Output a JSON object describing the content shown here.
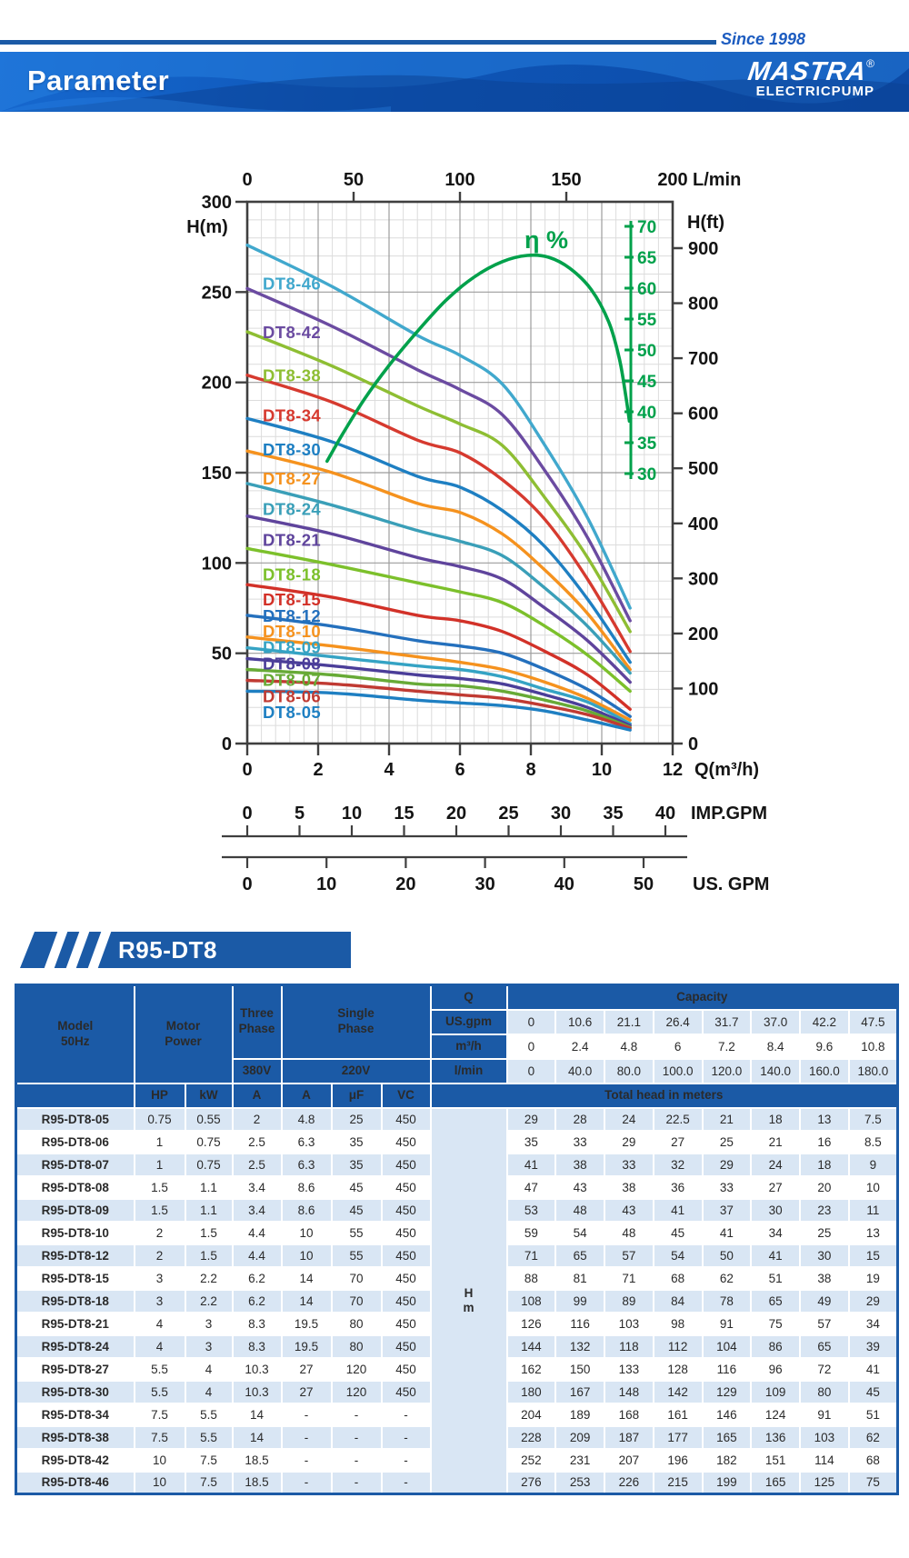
{
  "header": {
    "since": "Since 1998",
    "title": "Parameter",
    "brand": "MASTRA",
    "brand_mark": "®",
    "brand_sub": "ELECTRICPUMP"
  },
  "banner": {
    "label": "R95-DT8"
  },
  "chart_data": {
    "type": "line",
    "eff_label": "η %",
    "axes": {
      "top": {
        "label": "L/min",
        "ticks": [
          0,
          50,
          100,
          150,
          200
        ],
        "range": [
          0,
          200
        ]
      },
      "left": {
        "label": "H(m)",
        "ticks": [
          300,
          250,
          200,
          150,
          100,
          50,
          0
        ],
        "range": [
          0,
          300
        ]
      },
      "bottom": {
        "label": "Q(m³/h)",
        "ticks": [
          0,
          2,
          4,
          6,
          8,
          10,
          12
        ],
        "range": [
          0,
          12
        ]
      },
      "right": {
        "label": "H(ft)",
        "ticks": [
          900,
          800,
          700,
          600,
          500,
          400,
          300,
          200,
          100,
          0
        ]
      },
      "eff": {
        "ticks": [
          70,
          65,
          60,
          55,
          50,
          45,
          40,
          35,
          30
        ],
        "range": [
          30,
          70
        ]
      },
      "imp": {
        "label": "IMP.GPM",
        "ticks": [
          0,
          5,
          10,
          15,
          20,
          25,
          30,
          35,
          40
        ]
      },
      "us": {
        "label": "US. GPM",
        "ticks": [
          0,
          10,
          20,
          30,
          40,
          50
        ]
      }
    },
    "grid": {
      "minor_q_step": 0.4,
      "minor_h_step": 10,
      "major_q_step": 2,
      "major_h_step": 50
    },
    "q_points": [
      0,
      2.4,
      4.8,
      6,
      7.2,
      8.4,
      9.6,
      10.8
    ],
    "series": [
      {
        "name": "DT8-46",
        "color": "#41a8cd",
        "label_h": 255,
        "values": [
          276,
          253,
          226,
          215,
          199,
          165,
          125,
          75
        ]
      },
      {
        "name": "DT8-42",
        "color": "#6b4ba1",
        "label_h": 228,
        "values": [
          252,
          231,
          207,
          196,
          182,
          151,
          114,
          68
        ]
      },
      {
        "name": "DT8-38",
        "color": "#8ebe33",
        "label_h": 204,
        "values": [
          228,
          209,
          187,
          177,
          165,
          136,
          103,
          62
        ]
      },
      {
        "name": "DT8-34",
        "color": "#d63a2f",
        "label_h": 182,
        "values": [
          204,
          189,
          168,
          161,
          146,
          124,
          91,
          51
        ]
      },
      {
        "name": "DT8-30",
        "color": "#1e7fc2",
        "label_h": 163,
        "values": [
          180,
          167,
          148,
          142,
          129,
          109,
          80,
          45
        ]
      },
      {
        "name": "DT8-27",
        "color": "#f5921e",
        "label_h": 147,
        "values": [
          162,
          150,
          133,
          128,
          116,
          96,
          72,
          41
        ]
      },
      {
        "name": "DT8-24",
        "color": "#3a9fb8",
        "label_h": 130,
        "values": [
          144,
          132,
          118,
          112,
          104,
          86,
          65,
          39
        ]
      },
      {
        "name": "DT8-21",
        "color": "#5f449c",
        "label_h": 113,
        "values": [
          126,
          116,
          103,
          98,
          91,
          75,
          57,
          34
        ]
      },
      {
        "name": "DT8-18",
        "color": "#7cc02b",
        "label_h": 94,
        "values": [
          108,
          99,
          89,
          84,
          78,
          65,
          49,
          29
        ]
      },
      {
        "name": "DT8-15",
        "color": "#d23128",
        "label_h": 80,
        "values": [
          88,
          81,
          71,
          68,
          62,
          51,
          38,
          19
        ]
      },
      {
        "name": "DT8-12",
        "color": "#2470bd",
        "label_h": 71,
        "values": [
          71,
          65,
          57,
          54,
          50,
          41,
          30,
          15
        ]
      },
      {
        "name": "DT8-10",
        "color": "#f5921e",
        "label_h": 62.5,
        "values": [
          59,
          54,
          48,
          45,
          41,
          34,
          25,
          13
        ]
      },
      {
        "name": "DT8-09",
        "color": "#35a3c4",
        "label_h": 53.5,
        "values": [
          53,
          48,
          43,
          41,
          37,
          30,
          23,
          11
        ]
      },
      {
        "name": "DT8-08",
        "color": "#4b3e99",
        "label_h": 44.5,
        "values": [
          47,
          43,
          38,
          36,
          33,
          27,
          20,
          10
        ]
      },
      {
        "name": "DT8-07",
        "color": "#67aa36",
        "label_h": 35.5,
        "values": [
          41,
          38,
          33,
          32,
          29,
          24,
          18,
          9
        ]
      },
      {
        "name": "DT8-06",
        "color": "#c03a32",
        "label_h": 26.5,
        "values": [
          35,
          33,
          29,
          27,
          25,
          21,
          16,
          8.5
        ]
      },
      {
        "name": "DT8-05",
        "color": "#1e7fc2",
        "label_h": 17.5,
        "values": [
          29,
          28,
          24,
          22.5,
          21,
          18,
          13,
          7.5
        ]
      }
    ],
    "efficiency": {
      "color": "#00a14b",
      "points": [
        [
          2.25,
          32
        ],
        [
          2.7,
          36.5
        ],
        [
          3.3,
          42
        ],
        [
          4.0,
          47.5
        ],
        [
          4.8,
          53
        ],
        [
          5.6,
          58
        ],
        [
          6.4,
          61.8
        ],
        [
          7.2,
          64.3
        ],
        [
          7.9,
          65.3
        ],
        [
          8.5,
          65.0
        ],
        [
          9.1,
          63.2
        ],
        [
          9.7,
          59.8
        ],
        [
          10.2,
          54.5
        ],
        [
          10.5,
          48.5
        ],
        [
          10.68,
          42.5
        ],
        [
          10.78,
          38.5
        ]
      ]
    }
  },
  "table": {
    "header": {
      "model": [
        "Model",
        "50Hz"
      ],
      "motor": [
        "Motor",
        "Power"
      ],
      "three": [
        "Three",
        "Phase"
      ],
      "single": [
        "Single",
        "Phase"
      ],
      "v380": "380V",
      "v220": "220V",
      "q": "Q",
      "capacity": "Capacity",
      "cap_rows": [
        {
          "unit": "US.gpm",
          "values": [
            "0",
            "10.6",
            "21.1",
            "26.4",
            "31.7",
            "37.0",
            "42.2",
            "47.5"
          ]
        },
        {
          "unit": "m³/h",
          "values": [
            "0",
            "2.4",
            "4.8",
            "6",
            "7.2",
            "8.4",
            "9.6",
            "10.8"
          ]
        },
        {
          "unit": "l/min",
          "values": [
            "0",
            "40.0",
            "80.0",
            "100.0",
            "120.0",
            "140.0",
            "160.0",
            "180.0"
          ]
        }
      ],
      "sub": [
        "HP",
        "kW",
        "A",
        "A",
        "μF",
        "VC"
      ],
      "total_head": "Total head in meters",
      "hm": [
        "H",
        "m"
      ]
    },
    "rows": [
      {
        "model": "R95-DT8-05",
        "motor": [
          "0.75",
          "0.55"
        ],
        "a3": "2",
        "single": [
          "4.8",
          "25",
          "450"
        ],
        "heads": [
          "29",
          "28",
          "24",
          "22.5",
          "21",
          "18",
          "13",
          "7.5"
        ]
      },
      {
        "model": "R95-DT8-06",
        "motor": [
          "1",
          "0.75"
        ],
        "a3": "2.5",
        "single": [
          "6.3",
          "35",
          "450"
        ],
        "heads": [
          "35",
          "33",
          "29",
          "27",
          "25",
          "21",
          "16",
          "8.5"
        ]
      },
      {
        "model": "R95-DT8-07",
        "motor": [
          "1",
          "0.75"
        ],
        "a3": "2.5",
        "single": [
          "6.3",
          "35",
          "450"
        ],
        "heads": [
          "41",
          "38",
          "33",
          "32",
          "29",
          "24",
          "18",
          "9"
        ]
      },
      {
        "model": "R95-DT8-08",
        "motor": [
          "1.5",
          "1.1"
        ],
        "a3": "3.4",
        "single": [
          "8.6",
          "45",
          "450"
        ],
        "heads": [
          "47",
          "43",
          "38",
          "36",
          "33",
          "27",
          "20",
          "10"
        ]
      },
      {
        "model": "R95-DT8-09",
        "motor": [
          "1.5",
          "1.1"
        ],
        "a3": "3.4",
        "single": [
          "8.6",
          "45",
          "450"
        ],
        "heads": [
          "53",
          "48",
          "43",
          "41",
          "37",
          "30",
          "23",
          "11"
        ]
      },
      {
        "model": "R95-DT8-10",
        "motor": [
          "2",
          "1.5"
        ],
        "a3": "4.4",
        "single": [
          "10",
          "55",
          "450"
        ],
        "heads": [
          "59",
          "54",
          "48",
          "45",
          "41",
          "34",
          "25",
          "13"
        ]
      },
      {
        "model": "R95-DT8-12",
        "motor": [
          "2",
          "1.5"
        ],
        "a3": "4.4",
        "single": [
          "10",
          "55",
          "450"
        ],
        "heads": [
          "71",
          "65",
          "57",
          "54",
          "50",
          "41",
          "30",
          "15"
        ]
      },
      {
        "model": "R95-DT8-15",
        "motor": [
          "3",
          "2.2"
        ],
        "a3": "6.2",
        "single": [
          "14",
          "70",
          "450"
        ],
        "heads": [
          "88",
          "81",
          "71",
          "68",
          "62",
          "51",
          "38",
          "19"
        ]
      },
      {
        "model": "R95-DT8-18",
        "motor": [
          "3",
          "2.2"
        ],
        "a3": "6.2",
        "single": [
          "14",
          "70",
          "450"
        ],
        "heads": [
          "108",
          "99",
          "89",
          "84",
          "78",
          "65",
          "49",
          "29"
        ]
      },
      {
        "model": "R95-DT8-21",
        "motor": [
          "4",
          "3"
        ],
        "a3": "8.3",
        "single": [
          "19.5",
          "80",
          "450"
        ],
        "heads": [
          "126",
          "116",
          "103",
          "98",
          "91",
          "75",
          "57",
          "34"
        ]
      },
      {
        "model": "R95-DT8-24",
        "motor": [
          "4",
          "3"
        ],
        "a3": "8.3",
        "single": [
          "19.5",
          "80",
          "450"
        ],
        "heads": [
          "144",
          "132",
          "118",
          "112",
          "104",
          "86",
          "65",
          "39"
        ]
      },
      {
        "model": "R95-DT8-27",
        "motor": [
          "5.5",
          "4"
        ],
        "a3": "10.3",
        "single": [
          "27",
          "120",
          "450"
        ],
        "heads": [
          "162",
          "150",
          "133",
          "128",
          "116",
          "96",
          "72",
          "41"
        ]
      },
      {
        "model": "R95-DT8-30",
        "motor": [
          "5.5",
          "4"
        ],
        "a3": "10.3",
        "single": [
          "27",
          "120",
          "450"
        ],
        "heads": [
          "180",
          "167",
          "148",
          "142",
          "129",
          "109",
          "80",
          "45"
        ]
      },
      {
        "model": "R95-DT8-34",
        "motor": [
          "7.5",
          "5.5"
        ],
        "a3": "14",
        "single": [
          "-",
          "-",
          "-"
        ],
        "heads": [
          "204",
          "189",
          "168",
          "161",
          "146",
          "124",
          "91",
          "51"
        ]
      },
      {
        "model": "R95-DT8-38",
        "motor": [
          "7.5",
          "5.5"
        ],
        "a3": "14",
        "single": [
          "-",
          "-",
          "-"
        ],
        "heads": [
          "228",
          "209",
          "187",
          "177",
          "165",
          "136",
          "103",
          "62"
        ]
      },
      {
        "model": "R95-DT8-42",
        "motor": [
          "10",
          "7.5"
        ],
        "a3": "18.5",
        "single": [
          "-",
          "-",
          "-"
        ],
        "heads": [
          "252",
          "231",
          "207",
          "196",
          "182",
          "151",
          "114",
          "68"
        ]
      },
      {
        "model": "R95-DT8-46",
        "motor": [
          "10",
          "7.5"
        ],
        "a3": "18.5",
        "single": [
          "-",
          "-",
          "-"
        ],
        "heads": [
          "276",
          "253",
          "226",
          "215",
          "199",
          "165",
          "125",
          "75"
        ]
      }
    ]
  }
}
